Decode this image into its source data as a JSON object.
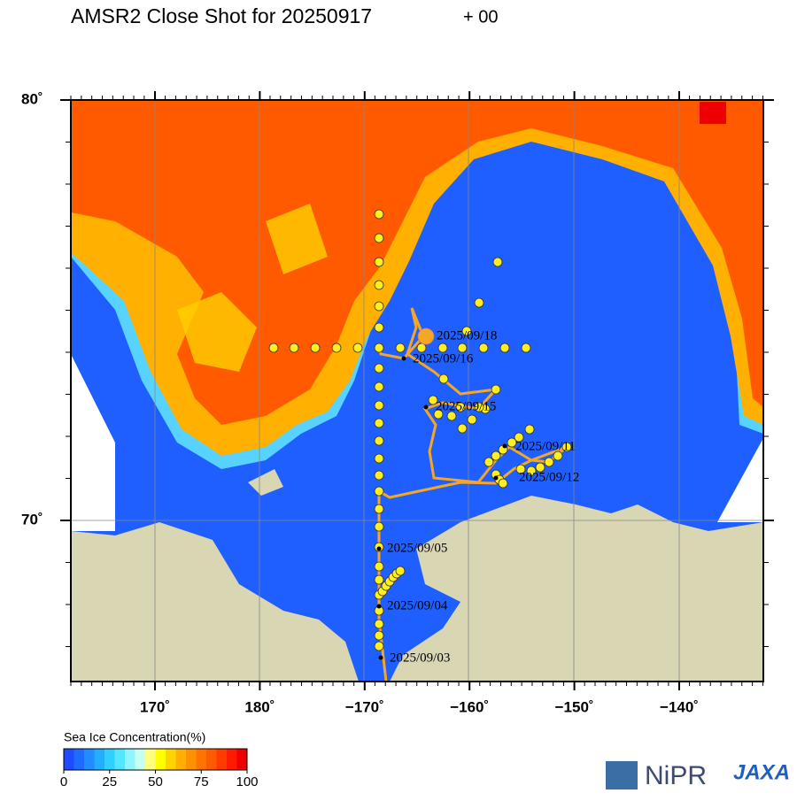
{
  "header": {
    "title": "AMSR2 Close Shot for 20250917",
    "suffix": "+ 00"
  },
  "map": {
    "lat_labels": [
      {
        "value": 80,
        "label": "80˚"
      },
      {
        "value": 70,
        "label": "70˚"
      }
    ],
    "lon_labels": [
      {
        "value": 170,
        "label": "170˚"
      },
      {
        "value": 180,
        "label": "180˚"
      },
      {
        "value": -170,
        "label": "−170˚"
      },
      {
        "value": -160,
        "label": "−160˚"
      },
      {
        "value": -150,
        "label": "−150˚"
      },
      {
        "value": -140,
        "label": "−140˚"
      }
    ],
    "track_labels": [
      "2025/09/18",
      "2025/09/16",
      "2025/09/15",
      "2025/09/11",
      "2025/09/12",
      "2025/09/05",
      "2025/09/04",
      "2025/09/03"
    ]
  },
  "colorbar": {
    "title": "Sea Ice Concentration(%)",
    "range": [
      0,
      100
    ],
    "ticks": [
      0,
      25,
      50,
      75,
      100
    ],
    "colors": [
      "#1e4bff",
      "#1f6bff",
      "#1f8cff",
      "#22adff",
      "#2fd0ff",
      "#55e6ff",
      "#8ff5ff",
      "#c6fff0",
      "#ffff80",
      "#ffff00",
      "#ffd400",
      "#ffb000",
      "#ff9100",
      "#ff7400",
      "#ff5a00",
      "#ff3c00",
      "#ff1a00",
      "#ee0000"
    ]
  },
  "logos": [
    "NiPR",
    "JAXA"
  ]
}
